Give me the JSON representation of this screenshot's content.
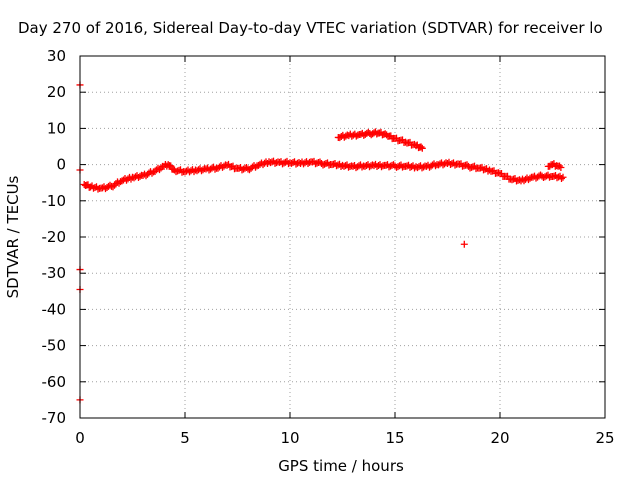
{
  "chart_data": {
    "type": "scatter",
    "title": "Day 270 of 2016, Sidereal Day-to-day VTEC variation (SDTVAR) for receiver lo",
    "xlabel": "GPS time / hours",
    "ylabel": "SDTVAR / TECUs",
    "xlim": [
      0,
      25
    ],
    "ylim": [
      -70,
      30
    ],
    "xticks": [
      0,
      5,
      10,
      15,
      20,
      25
    ],
    "yticks": [
      -70,
      -60,
      -50,
      -40,
      -30,
      -20,
      -10,
      0,
      10,
      20,
      30
    ],
    "grid": true,
    "marker": "+",
    "colors": {
      "series": "#ff0000",
      "grid": "#a0a0a0",
      "axis": "#000000"
    },
    "series": [
      {
        "name": "main trace",
        "points": [
          [
            0.2,
            -5.5
          ],
          [
            0.5,
            -6.2
          ],
          [
            1.0,
            -6.5
          ],
          [
            1.5,
            -6.0
          ],
          [
            2.0,
            -4.5
          ],
          [
            2.5,
            -3.5
          ],
          [
            3.0,
            -3.0
          ],
          [
            3.5,
            -2.0
          ],
          [
            4.0,
            -0.5
          ],
          [
            4.2,
            0.0
          ],
          [
            4.5,
            -1.5
          ],
          [
            5.0,
            -2.0
          ],
          [
            5.5,
            -1.5
          ],
          [
            6.0,
            -1.2
          ],
          [
            6.5,
            -1.0
          ],
          [
            7.0,
            -0.2
          ],
          [
            7.5,
            -1.0
          ],
          [
            8.0,
            -1.2
          ],
          [
            8.5,
            -0.2
          ],
          [
            9.0,
            0.8
          ],
          [
            9.5,
            0.6
          ],
          [
            10.0,
            0.5
          ],
          [
            10.5,
            0.3
          ],
          [
            11.0,
            0.8
          ],
          [
            11.5,
            0.3
          ],
          [
            12.0,
            0.0
          ],
          [
            12.5,
            -0.2
          ],
          [
            13.0,
            -0.5
          ],
          [
            13.5,
            -0.4
          ],
          [
            14.0,
            -0.3
          ],
          [
            14.5,
            -0.2
          ],
          [
            15.0,
            -0.4
          ],
          [
            15.5,
            -0.5
          ],
          [
            16.0,
            -0.6
          ],
          [
            16.5,
            -0.5
          ],
          [
            17.0,
            0.0
          ],
          [
            17.5,
            0.3
          ],
          [
            18.0,
            0.2
          ],
          [
            18.5,
            -0.5
          ],
          [
            19.0,
            -1.0
          ],
          [
            19.5,
            -1.5
          ],
          [
            20.0,
            -2.5
          ],
          [
            20.5,
            -4.0
          ],
          [
            21.0,
            -4.5
          ],
          [
            21.5,
            -3.5
          ],
          [
            22.0,
            -3.2
          ],
          [
            22.5,
            -3.3
          ],
          [
            23.0,
            -3.5
          ]
        ]
      },
      {
        "name": "upper arc",
        "points": [
          [
            12.3,
            7.5
          ],
          [
            12.8,
            8.0
          ],
          [
            13.3,
            8.3
          ],
          [
            13.8,
            8.6
          ],
          [
            14.2,
            8.7
          ],
          [
            14.6,
            8.2
          ],
          [
            15.0,
            7.2
          ],
          [
            15.5,
            6.2
          ],
          [
            16.0,
            5.2
          ],
          [
            16.3,
            4.5
          ]
        ]
      },
      {
        "name": "late segment",
        "points": [
          [
            22.3,
            -0.5
          ],
          [
            22.5,
            0.0
          ],
          [
            22.7,
            -0.3
          ],
          [
            22.9,
            -0.8
          ]
        ]
      },
      {
        "name": "outliers",
        "points": [
          [
            0.0,
            22.0
          ],
          [
            0.0,
            -1.5
          ],
          [
            0.0,
            -29.0
          ],
          [
            0.0,
            -34.5
          ],
          [
            0.0,
            -65.0
          ],
          [
            18.3,
            -22.0
          ]
        ]
      }
    ]
  }
}
